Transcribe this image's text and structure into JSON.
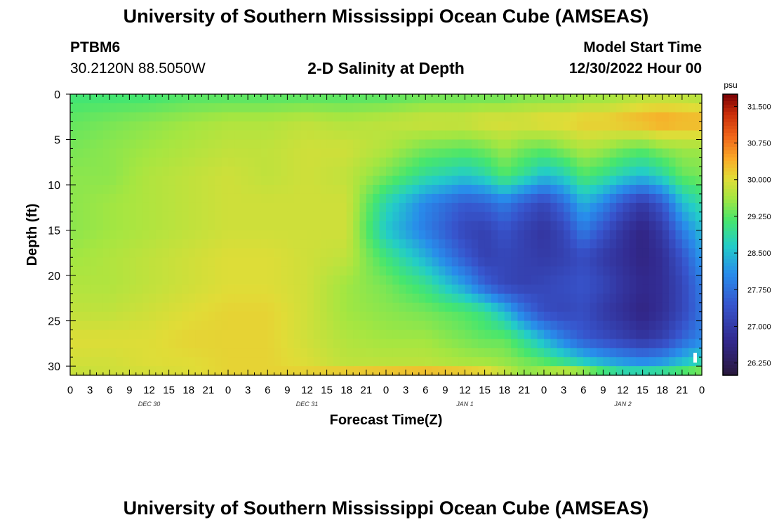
{
  "header": {
    "title": "University of Southern Mississippi Ocean Cube (AMSEAS)",
    "station": "PTBM6",
    "coords": "30.2120N  88.5050W",
    "subtitle": "2-D Salinity at Depth",
    "model_start_label": "Model Start Time",
    "model_start_value": "12/30/2022 Hour 00"
  },
  "footer": {
    "title": "University of Southern Mississippi Ocean Cube (AMSEAS)"
  },
  "chart_data": {
    "type": "heatmap",
    "title": "2-D Salinity at Depth",
    "xlabel": "Forecast Time(Z)",
    "ylabel": "Depth (ft)",
    "x_hours_range": [
      0,
      96
    ],
    "x_tick_labels": [
      "0",
      "3",
      "6",
      "9",
      "12",
      "15",
      "18",
      "21",
      "0",
      "3",
      "6",
      "9",
      "12",
      "15",
      "18",
      "21",
      "0",
      "3",
      "6",
      "9",
      "12",
      "15",
      "18",
      "21",
      "0",
      "3",
      "6",
      "9",
      "12",
      "15",
      "18",
      "21",
      "0"
    ],
    "date_labels": [
      {
        "hour": 12,
        "label": "DEC 30"
      },
      {
        "hour": 36,
        "label": "DEC 31"
      },
      {
        "hour": 60,
        "label": "JAN 1"
      },
      {
        "hour": 84,
        "label": "JAN 2"
      }
    ],
    "ylim": [
      0,
      31
    ],
    "y_reversed": true,
    "y_ticks": [
      0,
      5,
      10,
      15,
      20,
      25,
      30
    ],
    "colorbar": {
      "unit": "psu",
      "min": 26.0,
      "max": 31.75,
      "tick_labels": [
        "31.500",
        "30.750",
        "30.000",
        "29.250",
        "28.500",
        "27.750",
        "27.000",
        "26.250"
      ],
      "tick_values": [
        31.5,
        30.75,
        30.0,
        29.25,
        28.5,
        27.75,
        27.0,
        26.25
      ]
    },
    "depth_levels": [
      0,
      3,
      6,
      9,
      12,
      15,
      18,
      21,
      24,
      27,
      30,
      31
    ],
    "time_hours": [
      0,
      6,
      12,
      18,
      24,
      30,
      36,
      42,
      48,
      54,
      60,
      63,
      66,
      69,
      72,
      75,
      78,
      81,
      84,
      87,
      90,
      93,
      96
    ],
    "salinity": [
      [
        29.1,
        29.1,
        29.1,
        29.2,
        29.2,
        29.2,
        29.2,
        29.2,
        29.2,
        29.3,
        29.3,
        29.3,
        29.3,
        29.4,
        29.4,
        29.4,
        29.5,
        29.5,
        29.6,
        29.7,
        29.7,
        29.7,
        29.6
      ],
      [
        29.3,
        29.4,
        29.5,
        29.6,
        29.7,
        29.7,
        29.8,
        29.7,
        29.8,
        29.9,
        29.9,
        30.0,
        30.0,
        30.0,
        30.1,
        30.1,
        30.2,
        30.2,
        30.3,
        30.4,
        30.5,
        30.4,
        30.4
      ],
      [
        29.4,
        29.5,
        29.6,
        29.7,
        29.8,
        29.8,
        29.9,
        29.9,
        29.7,
        29.4,
        29.3,
        29.4,
        29.6,
        29.4,
        29.3,
        29.5,
        29.7,
        29.6,
        29.4,
        29.3,
        29.5,
        29.6,
        29.6
      ],
      [
        29.5,
        29.5,
        29.7,
        29.8,
        29.9,
        29.8,
        29.9,
        29.8,
        29.4,
        28.9,
        28.6,
        28.8,
        29.2,
        28.9,
        28.5,
        28.7,
        29.2,
        29.0,
        28.7,
        28.5,
        28.8,
        29.3,
        29.4
      ],
      [
        29.5,
        29.6,
        29.7,
        29.8,
        29.9,
        29.9,
        29.9,
        29.9,
        28.8,
        28.0,
        27.5,
        27.6,
        27.9,
        27.5,
        27.2,
        27.7,
        28.4,
        28.0,
        27.4,
        27.0,
        27.5,
        28.5,
        28.9
      ],
      [
        29.5,
        29.6,
        29.7,
        29.8,
        29.9,
        29.9,
        29.9,
        29.9,
        28.6,
        27.9,
        27.2,
        27.1,
        27.4,
        27.1,
        26.9,
        27.2,
        27.9,
        27.4,
        26.9,
        26.6,
        27.0,
        27.9,
        28.5
      ],
      [
        29.6,
        29.7,
        29.8,
        29.9,
        30.0,
        30.0,
        29.9,
        29.8,
        29.1,
        28.4,
        27.5,
        27.1,
        27.2,
        27.1,
        27.0,
        27.1,
        27.3,
        27.0,
        26.8,
        26.6,
        26.8,
        27.4,
        28.2
      ],
      [
        29.7,
        29.7,
        29.8,
        29.9,
        30.0,
        30.0,
        29.9,
        29.6,
        29.4,
        29.0,
        28.2,
        27.6,
        27.2,
        27.1,
        27.2,
        27.3,
        27.4,
        27.2,
        26.9,
        26.7,
        26.8,
        27.2,
        27.9
      ],
      [
        29.8,
        29.8,
        29.9,
        30.0,
        30.1,
        30.1,
        29.9,
        29.6,
        29.5,
        29.4,
        29.2,
        29.0,
        28.5,
        27.8,
        27.3,
        27.2,
        27.3,
        27.0,
        26.8,
        26.6,
        26.8,
        27.2,
        27.8
      ],
      [
        30.0,
        30.0,
        30.0,
        30.1,
        30.1,
        30.1,
        29.9,
        29.7,
        29.6,
        29.6,
        29.4,
        29.3,
        29.3,
        28.9,
        28.4,
        27.9,
        27.5,
        27.3,
        27.1,
        26.9,
        27.1,
        27.6,
        28.0
      ],
      [
        29.9,
        29.9,
        30.0,
        30.0,
        30.1,
        30.1,
        30.0,
        29.8,
        29.8,
        29.8,
        29.7,
        29.7,
        29.6,
        29.5,
        29.4,
        29.2,
        28.9,
        28.6,
        28.4,
        28.3,
        28.4,
        28.7,
        29.0
      ],
      [
        29.8,
        29.9,
        29.9,
        30.0,
        30.1,
        30.1,
        30.2,
        30.5,
        30.6,
        30.7,
        30.6,
        30.4,
        30.0,
        29.5,
        29.8,
        30.2,
        30.1,
        29.6,
        29.2,
        29.3,
        29.4,
        29.6,
        29.8
      ]
    ]
  }
}
